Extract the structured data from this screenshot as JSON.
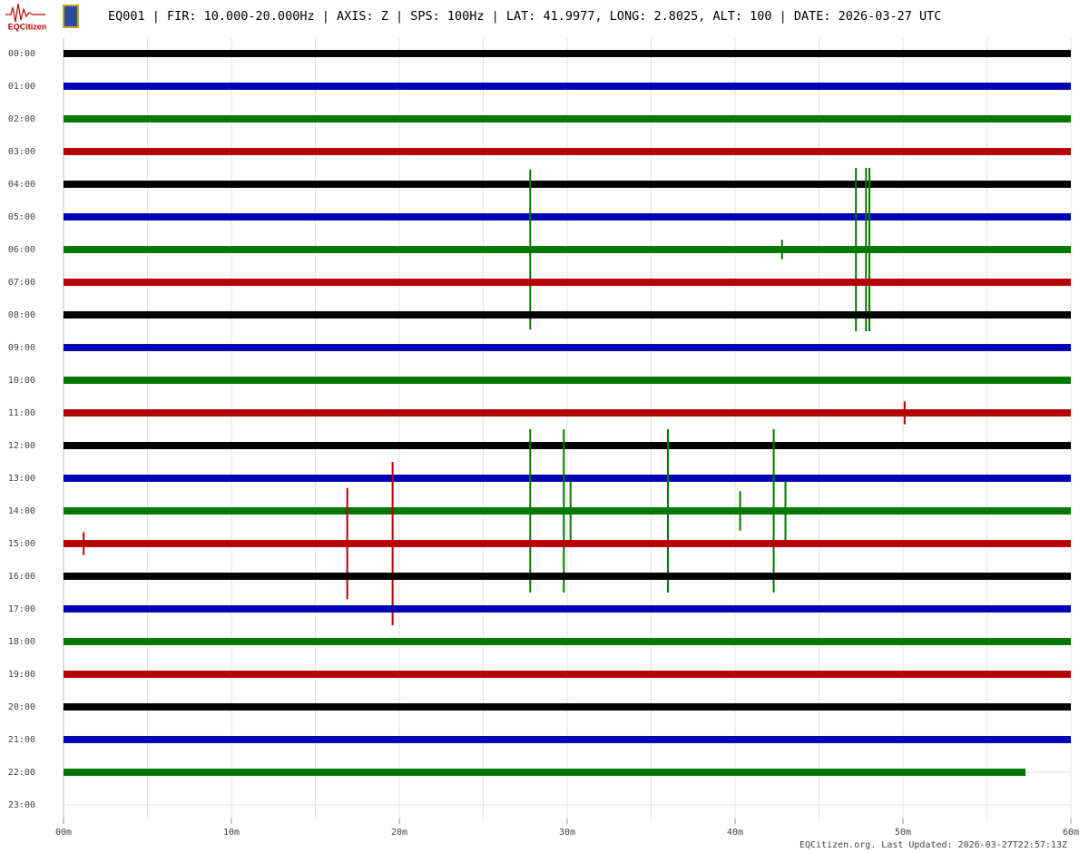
{
  "chart_data": {
    "type": "helicorder",
    "logo": "EQCitizen",
    "title": "EQ001 | FIR: 10.000-20.000Hz | AXIS: Z | SPS: 100Hz | LAT: 41.9977, LONG: 2.8025, ALT: 100 | DATE: 2026-03-27 UTC",
    "footer": "EQCitizen.org. Last Updated: 2026-03-27T22:57:13Z",
    "xlim": [
      0,
      60
    ],
    "xticks": [
      {
        "value": 0,
        "label": "00m"
      },
      {
        "value": 10,
        "label": "10m"
      },
      {
        "value": 20,
        "label": "20m"
      },
      {
        "value": 30,
        "label": "30m"
      },
      {
        "value": 40,
        "label": "40m"
      },
      {
        "value": 50,
        "label": "50m"
      },
      {
        "value": 60,
        "label": "60m"
      }
    ],
    "x_minor_step": 5,
    "grid": true,
    "rows": [
      {
        "label": "00:00",
        "color": "#000000",
        "end": 60,
        "noise": 0.11
      },
      {
        "label": "01:00",
        "color": "#0000b4",
        "end": 60,
        "noise": 0.11
      },
      {
        "label": "02:00",
        "color": "#007800",
        "end": 60,
        "noise": 0.11
      },
      {
        "label": "03:00",
        "color": "#b40000",
        "end": 60,
        "noise": 0.11
      },
      {
        "label": "04:00",
        "color": "#000000",
        "end": 60,
        "noise": 0.11
      },
      {
        "label": "05:00",
        "color": "#0000b4",
        "end": 60,
        "noise": 0.11
      },
      {
        "label": "06:00",
        "color": "#007800",
        "end": 60,
        "noise": 0.11,
        "events": [
          {
            "minute": 27.8,
            "amplitude": 2.45
          },
          {
            "minute": 42.8,
            "amplitude": 0.3
          },
          {
            "minute": 47.2,
            "amplitude": 2.5
          },
          {
            "minute": 47.8,
            "amplitude": 2.5
          },
          {
            "minute": 48.0,
            "amplitude": 2.5
          }
        ]
      },
      {
        "label": "07:00",
        "color": "#b40000",
        "end": 60,
        "noise": 0.11
      },
      {
        "label": "08:00",
        "color": "#000000",
        "end": 60,
        "noise": 0.11
      },
      {
        "label": "09:00",
        "color": "#0000b4",
        "end": 60,
        "noise": 0.11
      },
      {
        "label": "10:00",
        "color": "#007800",
        "end": 60,
        "noise": 0.11
      },
      {
        "label": "11:00",
        "color": "#b40000",
        "end": 60,
        "noise": 0.11,
        "events": [
          {
            "minute": 50.1,
            "amplitude": 0.35
          }
        ]
      },
      {
        "label": "12:00",
        "color": "#000000",
        "end": 60,
        "noise": 0.11
      },
      {
        "label": "13:00",
        "color": "#0000b4",
        "end": 60,
        "noise": 0.11
      },
      {
        "label": "14:00",
        "color": "#007800",
        "end": 60,
        "noise": 0.11,
        "events": [
          {
            "minute": 27.8,
            "amplitude": 2.5
          },
          {
            "minute": 29.8,
            "amplitude": 2.5
          },
          {
            "minute": 30.2,
            "amplitude": 0.9
          },
          {
            "minute": 36.0,
            "amplitude": 2.5
          },
          {
            "minute": 40.3,
            "amplitude": 0.6
          },
          {
            "minute": 42.3,
            "amplitude": 2.5
          },
          {
            "minute": 43.0,
            "amplitude": 0.9
          }
        ]
      },
      {
        "label": "15:00",
        "color": "#b40000",
        "end": 60,
        "noise": 0.11,
        "events": [
          {
            "minute": 1.2,
            "amplitude": 0.35
          },
          {
            "minute": 16.9,
            "amplitude": 1.7
          },
          {
            "minute": 19.6,
            "amplitude": 2.5
          }
        ]
      },
      {
        "label": "16:00",
        "color": "#000000",
        "end": 60,
        "noise": 0.11
      },
      {
        "label": "17:00",
        "color": "#0000b4",
        "end": 60,
        "noise": 0.11
      },
      {
        "label": "18:00",
        "color": "#007800",
        "end": 60,
        "noise": 0.11
      },
      {
        "label": "19:00",
        "color": "#b40000",
        "end": 60,
        "noise": 0.11
      },
      {
        "label": "20:00",
        "color": "#000000",
        "end": 60,
        "noise": 0.11
      },
      {
        "label": "21:00",
        "color": "#0000b4",
        "end": 60,
        "noise": 0.11
      },
      {
        "label": "22:00",
        "color": "#007800",
        "end": 57.3,
        "noise": 0.11
      },
      {
        "label": "23:00"
      }
    ]
  }
}
